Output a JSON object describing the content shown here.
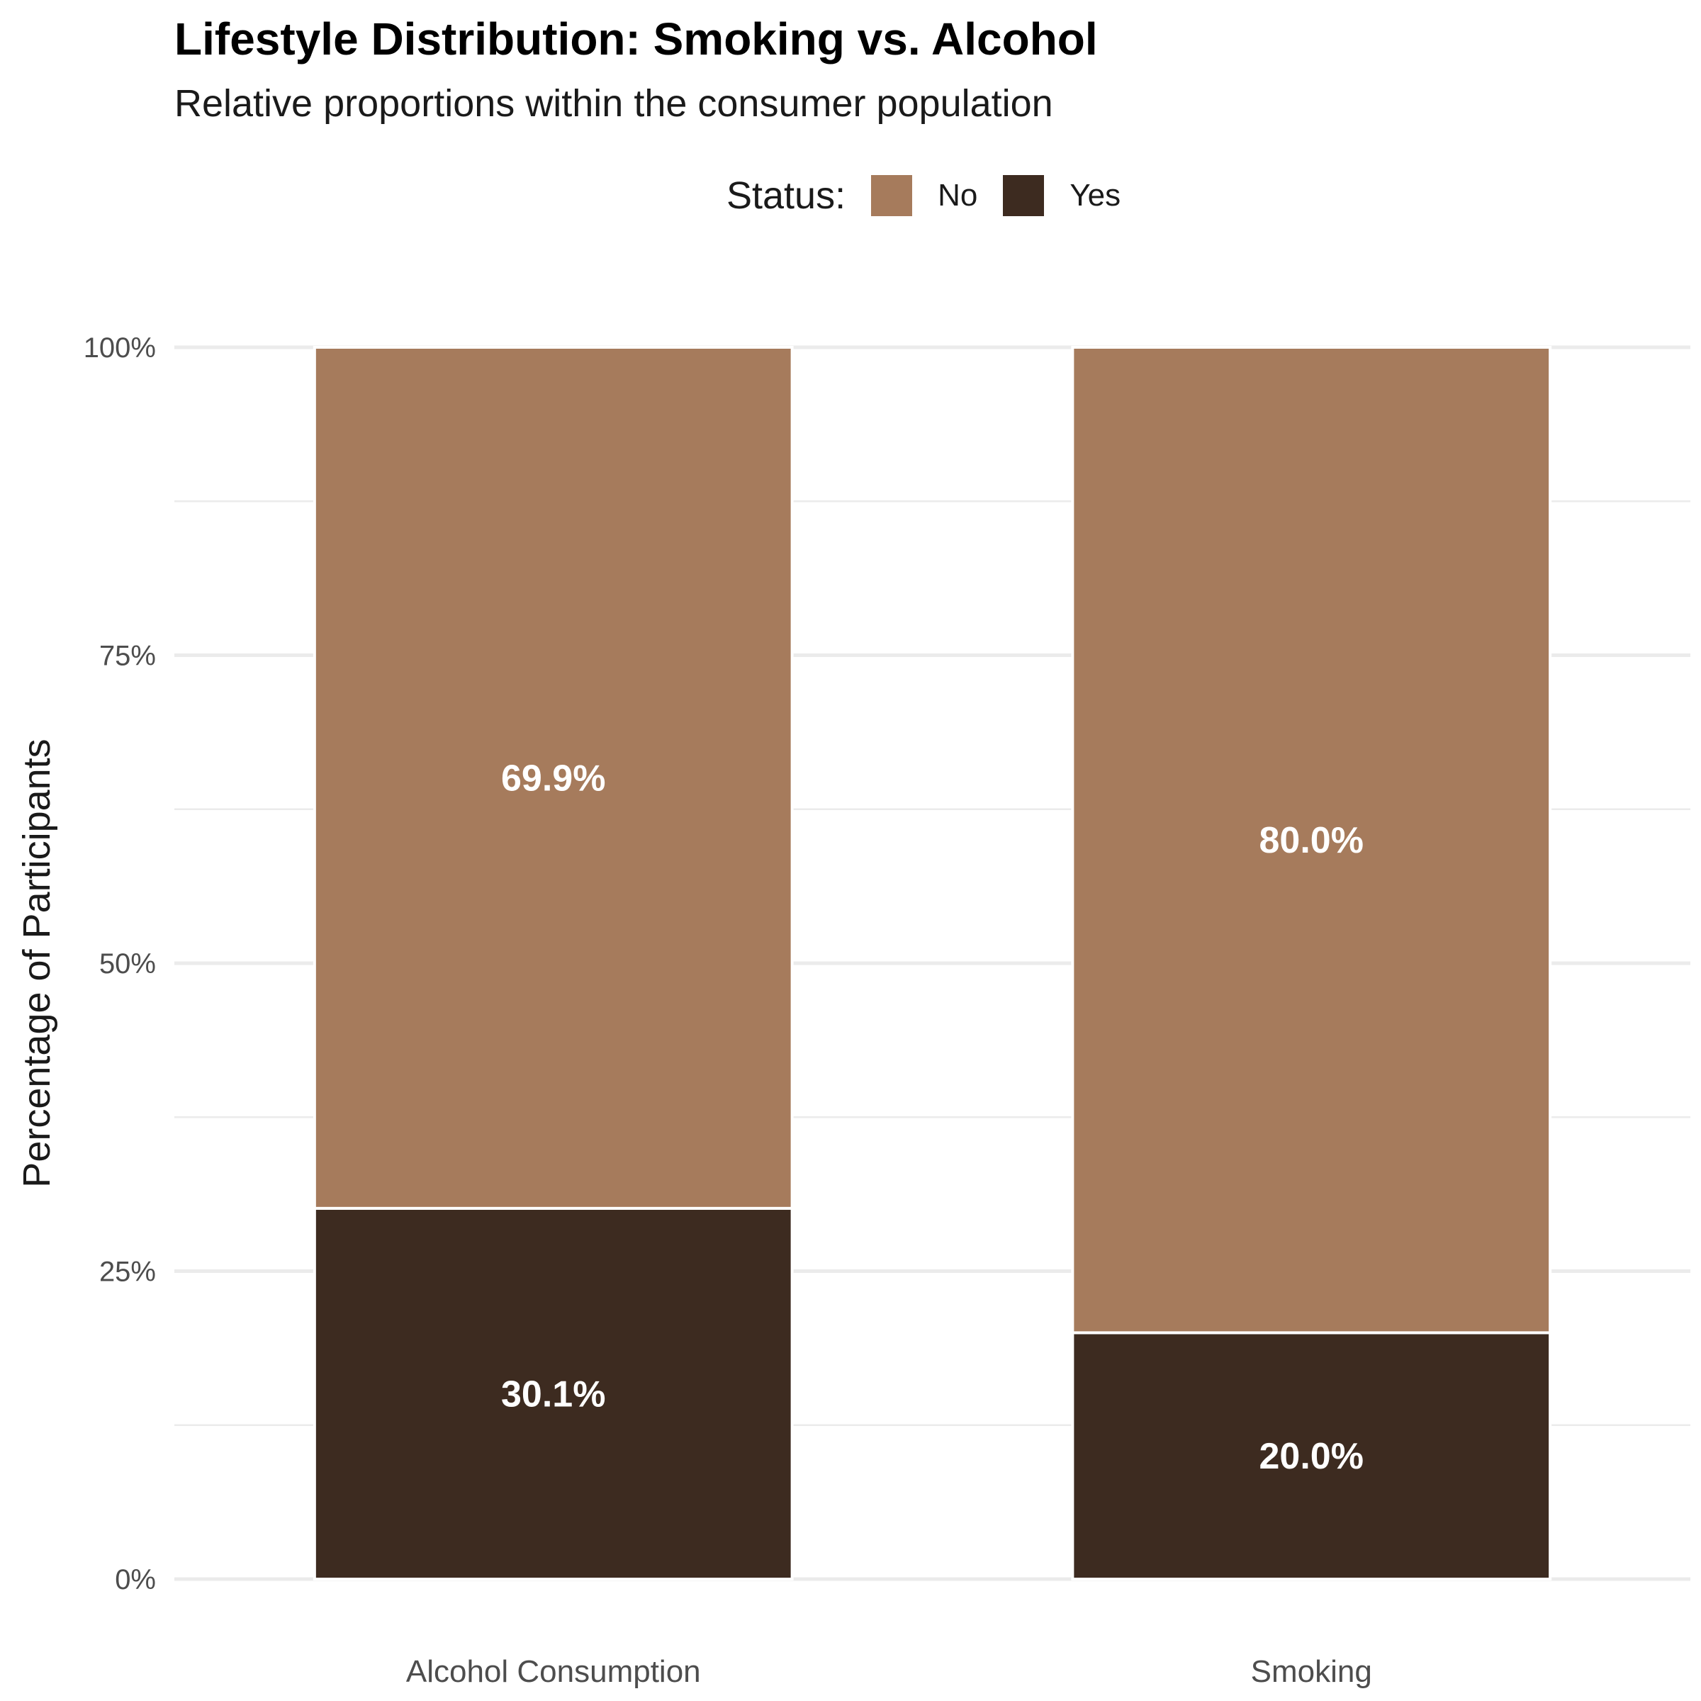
{
  "chart_data": {
    "type": "bar",
    "stacked": true,
    "title": "Lifestyle Distribution: Smoking vs. Alcohol",
    "subtitle": "Relative proportions within the consumer population",
    "xlabel": "",
    "ylabel": "Percentage of Participants",
    "ylim": [
      0,
      100
    ],
    "y_ticks": [
      "0%",
      "25%",
      "50%",
      "75%",
      "100%"
    ],
    "grid": true,
    "legend_title": "Status:",
    "legend_position": "top",
    "categories": [
      "Alcohol Consumption",
      "Smoking"
    ],
    "series": [
      {
        "name": "No",
        "color": "#A67B5C",
        "values": [
          69.9,
          80.0
        ],
        "labels": [
          "69.9%",
          "80.0%"
        ]
      },
      {
        "name": "Yes",
        "color": "#3D2B20",
        "values": [
          30.1,
          20.0
        ],
        "labels": [
          "30.1%",
          "20.0%"
        ]
      }
    ]
  }
}
